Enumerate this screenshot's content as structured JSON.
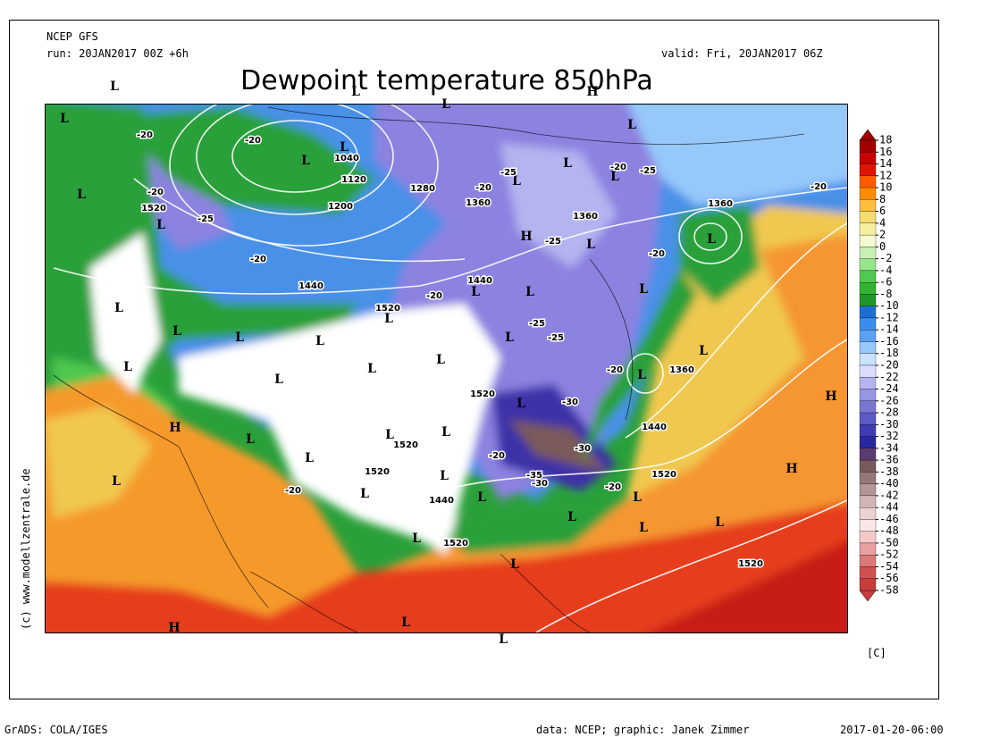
{
  "header": {
    "model": "NCEP GFS",
    "run": "run: 20JAN2017 00Z +6h",
    "valid": "valid: Fri, 20JAN2017 06Z",
    "title": "Dewpoint temperature 850hPa"
  },
  "map": {
    "symbols": [
      "L",
      "L",
      "H",
      "L",
      "L",
      "L",
      "L",
      "L",
      "L",
      "L",
      "L",
      "L",
      "H",
      "L",
      "L",
      "L",
      "L",
      "L",
      "L",
      "L",
      "L",
      "L",
      "L",
      "L",
      "L",
      "L",
      "L",
      "L",
      "L",
      "L",
      "L",
      "L",
      "H",
      "H",
      "L",
      "L",
      "L",
      "L",
      "H",
      "L",
      "L",
      "L",
      "L",
      "L",
      "L",
      "L",
      "L",
      "L",
      "L",
      "L",
      "H",
      "L"
    ],
    "contour_labels": [
      "1040",
      "1120",
      "1200",
      "1280",
      "1360",
      "1360",
      "1360",
      "1520",
      "1440",
      "1520",
      "1440",
      "1520",
      "1360",
      "1440",
      "1520",
      "1520",
      "1440",
      "1520",
      "1520",
      "1520",
      "-20",
      "-20",
      "-20",
      "-25",
      "-20",
      "-20",
      "-25",
      "-20",
      "-25",
      "-20",
      "-25",
      "-20",
      "-20",
      "-25",
      "-25",
      "-20",
      "-30",
      "-30",
      "-20",
      "-35",
      "-30",
      "-20",
      "-20"
    ]
  },
  "colorbar": {
    "labels": [
      18,
      16,
      14,
      12,
      10,
      8,
      6,
      4,
      2,
      0,
      -2,
      -4,
      -6,
      -8,
      -10,
      -12,
      -14,
      -16,
      -18,
      -20,
      -22,
      -24,
      -26,
      -28,
      -30,
      -32,
      -34,
      -36,
      -38,
      -40,
      -42,
      -44,
      -46,
      -48,
      -50,
      -52,
      -54,
      -56,
      -58
    ],
    "unit": "[C]"
  },
  "credit": "(c) www.modellzentrale.de",
  "footer": {
    "software": "GrADS: COLA/IGES",
    "source": "data: NCEP; graphic: Janek Zimmer",
    "timestamp": "2017-01-20-06:00"
  }
}
